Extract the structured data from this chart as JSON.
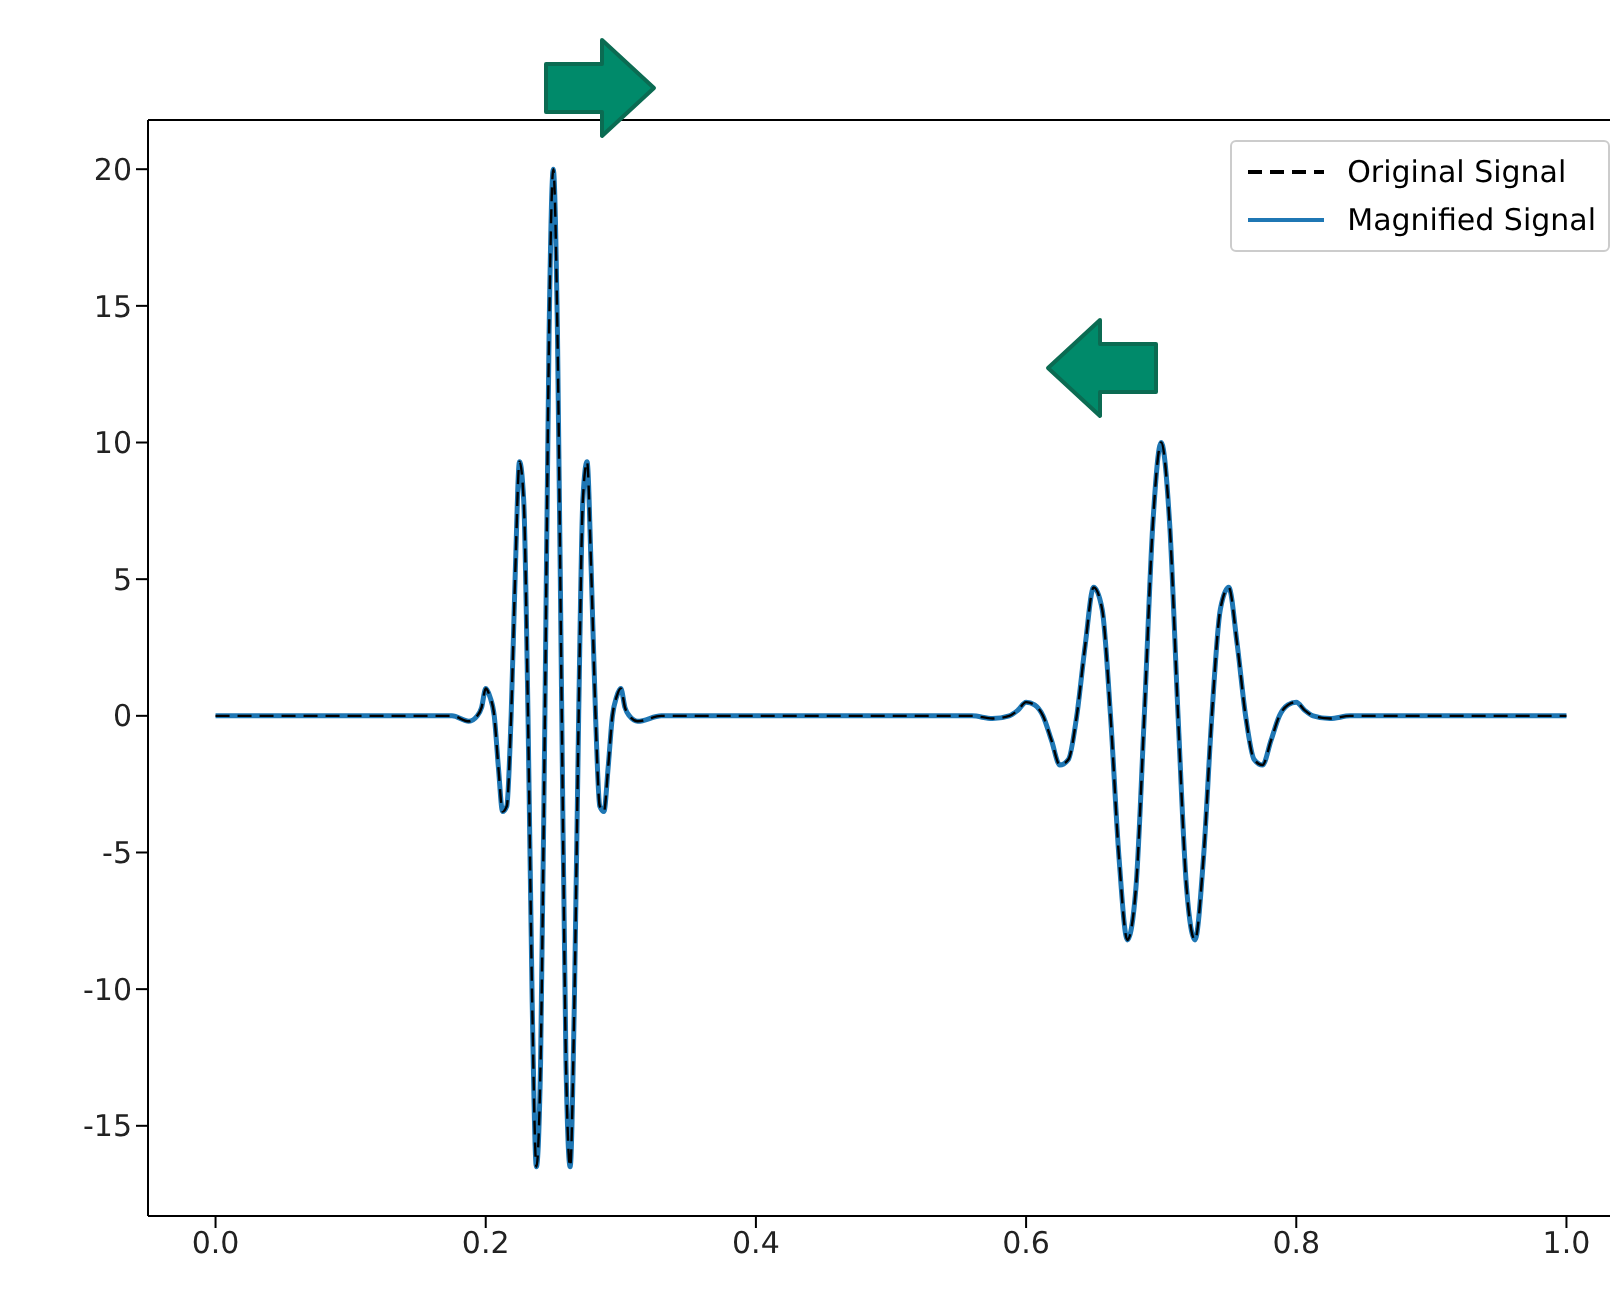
{
  "chart_data": {
    "type": "line",
    "x": [
      0,
      0.175,
      0.1875,
      0.1938,
      0.1969,
      0.2,
      0.2031,
      0.2063,
      0.2094,
      0.2125,
      0.2156,
      0.2188,
      0.2219,
      0.225,
      0.2281,
      0.2313,
      0.2344,
      0.2375,
      0.2406,
      0.2438,
      0.2469,
      0.25,
      0.2531,
      0.2563,
      0.2594,
      0.2625,
      0.2656,
      0.2688,
      0.2719,
      0.275,
      0.2781,
      0.2813,
      0.2844,
      0.2875,
      0.2906,
      0.2938,
      0.2969,
      0.3,
      0.3031,
      0.3063,
      0.3125,
      0.33,
      0.56,
      0.575,
      0.5875,
      0.5938,
      0.6,
      0.6063,
      0.6125,
      0.6188,
      0.625,
      0.6313,
      0.6375,
      0.6438,
      0.65,
      0.6563,
      0.6625,
      0.6688,
      0.675,
      0.6813,
      0.6875,
      0.6938,
      0.7,
      0.7063,
      0.7125,
      0.7188,
      0.725,
      0.7313,
      0.7375,
      0.7438,
      0.75,
      0.7563,
      0.7625,
      0.7688,
      0.775,
      0.7813,
      0.7875,
      0.7938,
      0.8,
      0.8063,
      0.8125,
      0.825,
      0.84,
      1
    ],
    "series": [
      {
        "name": "Original Signal",
        "color": "#000000",
        "line_style": "dashed",
        "values": [
          0,
          0,
          -0.2,
          0,
          0.3,
          1,
          0.7,
          0,
          -1.9,
          -3.5,
          -3.3,
          0,
          5.3,
          9.3,
          7.9,
          0,
          -10.5,
          -16.5,
          -12.7,
          0,
          14,
          20,
          14,
          0,
          -12.7,
          -16.5,
          -10.5,
          0,
          7.9,
          9.3,
          5.3,
          0,
          -3.3,
          -3.5,
          -1.9,
          0,
          0.7,
          1,
          0.3,
          0,
          -0.2,
          0,
          0,
          -0.1,
          0,
          0.2,
          0.5,
          0.4,
          0,
          -0.9,
          -1.8,
          -1.6,
          0,
          2.6,
          4.7,
          3.9,
          0,
          -5.2,
          -8.2,
          -6.3,
          0,
          7,
          10,
          7,
          0,
          -6.3,
          -8.2,
          -5.2,
          0,
          3.9,
          4.7,
          2.6,
          0,
          -1.6,
          -1.8,
          -0.9,
          0,
          0.4,
          0.5,
          0.2,
          0,
          -0.1,
          0,
          0
        ]
      },
      {
        "name": "Magnified Signal",
        "color": "#1f77b4",
        "line_style": "solid",
        "values": [
          0,
          0,
          -0.2,
          0,
          0.3,
          1,
          0.7,
          0,
          -1.9,
          -3.5,
          -3.3,
          0,
          5.3,
          9.3,
          7.9,
          0,
          -10.5,
          -16.5,
          -12.7,
          0,
          14,
          20,
          14,
          0,
          -12.7,
          -16.5,
          -10.5,
          0,
          7.9,
          9.3,
          5.3,
          0,
          -3.3,
          -3.5,
          -1.9,
          0,
          0.7,
          1,
          0.3,
          0,
          -0.2,
          0,
          0,
          -0.1,
          0,
          0.2,
          0.5,
          0.4,
          0,
          -0.9,
          -1.8,
          -1.6,
          0,
          2.6,
          4.7,
          3.9,
          0,
          -5.2,
          -8.2,
          -6.3,
          0,
          7,
          10,
          7,
          0,
          -6.3,
          -8.2,
          -5.2,
          0,
          3.9,
          4.7,
          2.6,
          0,
          -1.6,
          -1.8,
          -0.9,
          0,
          0.4,
          0.5,
          0.2,
          0,
          -0.1,
          0,
          0
        ]
      }
    ],
    "xlim": [
      -0.05,
      1.05
    ],
    "xticks": [
      {
        "value": 0,
        "label": "0.0"
      },
      0.2,
      0.4,
      0.6,
      0.8,
      {
        "value": 1,
        "label": "1.0"
      }
    ],
    "ylim": [
      -18.3,
      21.8
    ],
    "yticks": [
      -15,
      -10,
      -5,
      0,
      5,
      10,
      15,
      20
    ],
    "grid": false,
    "legend": "top right"
  }
}
